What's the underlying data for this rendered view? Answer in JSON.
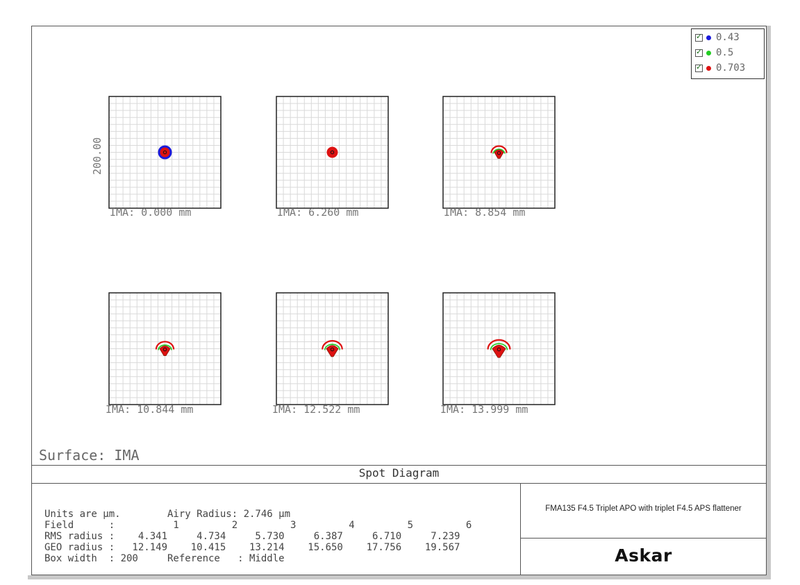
{
  "legend": [
    {
      "label": "0.43",
      "color": "#1a1adb"
    },
    {
      "label": "0.5",
      "color": "#22cc22"
    },
    {
      "label": "0.703",
      "color": "#dd1111"
    }
  ],
  "scale_label": "200.00",
  "fields": [
    {
      "label": "IMA: 0.000 mm",
      "spot": "round"
    },
    {
      "label": "IMA: 6.260 mm",
      "spot": "small"
    },
    {
      "label": "IMA: 8.854 mm",
      "spot": "coma1"
    },
    {
      "label": "IMA: 10.844 mm",
      "spot": "coma2"
    },
    {
      "label": "IMA: 12.522 mm",
      "spot": "coma3"
    },
    {
      "label": "IMA: 13.999 mm",
      "spot": "coma4"
    }
  ],
  "surface_label": "Surface: IMA",
  "footer": {
    "title": "Spot Diagram",
    "info_lines": [
      "Units are µm.        Airy Radius: 2.746 µm",
      "Field      :          1         2         3         4         5         6",
      "RMS radius :    4.341     4.734     5.730     6.387     6.710     7.239",
      "GEO radius :   12.149    10.415    13.214    15.650    17.756    19.567",
      "Box width  : 200     Reference   : Middle"
    ],
    "lens_title": "FMA135 F4.5 Triplet APO with triplet F4.5 APS flattener",
    "brand": "Askar"
  }
}
